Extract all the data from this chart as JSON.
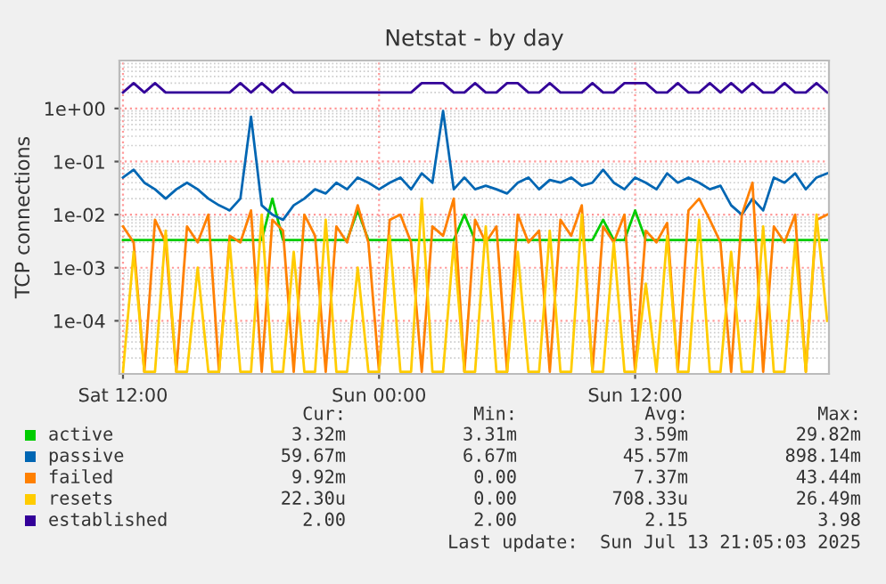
{
  "chart_data": {
    "type": "line",
    "title": "Netstat - by day",
    "ylabel": "TCP connections",
    "x": [
      "2025-07-12T12:00",
      "2025-07-12T12:30",
      "2025-07-12T13:00",
      "2025-07-12T13:30",
      "2025-07-12T14:00",
      "2025-07-12T14:30",
      "2025-07-12T15:00",
      "2025-07-12T15:30",
      "2025-07-12T16:00",
      "2025-07-12T16:30",
      "2025-07-12T17:00",
      "2025-07-12T17:30",
      "2025-07-12T18:00",
      "2025-07-12T18:30",
      "2025-07-12T19:00",
      "2025-07-12T19:30",
      "2025-07-12T20:00",
      "2025-07-12T20:30",
      "2025-07-12T21:00",
      "2025-07-12T21:30",
      "2025-07-12T22:00",
      "2025-07-12T22:30",
      "2025-07-12T23:00",
      "2025-07-12T23:30",
      "2025-07-13T00:00",
      "2025-07-13T00:30",
      "2025-07-13T01:00",
      "2025-07-13T01:30",
      "2025-07-13T02:00",
      "2025-07-13T02:30",
      "2025-07-13T03:00",
      "2025-07-13T03:30",
      "2025-07-13T04:00",
      "2025-07-13T04:30",
      "2025-07-13T05:00",
      "2025-07-13T05:30",
      "2025-07-13T06:00",
      "2025-07-13T06:30",
      "2025-07-13T07:00",
      "2025-07-13T07:30",
      "2025-07-13T08:00",
      "2025-07-13T08:30",
      "2025-07-13T09:00",
      "2025-07-13T09:30",
      "2025-07-13T10:00",
      "2025-07-13T10:30",
      "2025-07-13T11:00",
      "2025-07-13T11:30",
      "2025-07-13T12:00",
      "2025-07-13T12:30",
      "2025-07-13T13:00",
      "2025-07-13T13:30",
      "2025-07-13T14:00",
      "2025-07-13T14:30",
      "2025-07-13T15:00",
      "2025-07-13T15:30",
      "2025-07-13T16:00",
      "2025-07-13T16:30",
      "2025-07-13T17:00",
      "2025-07-13T17:30",
      "2025-07-13T18:00",
      "2025-07-13T18:30",
      "2025-07-13T19:00",
      "2025-07-13T19:30",
      "2025-07-13T20:00",
      "2025-07-13T20:30",
      "2025-07-13T21:00"
    ],
    "xlim": [
      "2025-07-12T11:50",
      "2025-07-13T21:05"
    ],
    "xticks": [
      {
        "value": "2025-07-12T12:00",
        "label": "Sat 12:00"
      },
      {
        "value": "2025-07-13T00:00",
        "label": "Sun 00:00"
      },
      {
        "value": "2025-07-13T12:00",
        "label": "Sun 12:00"
      }
    ],
    "log": "y",
    "ylim": [
      1e-05,
      8
    ],
    "yticks": [
      {
        "value": 0.0001,
        "label": "1e-04"
      },
      {
        "value": 0.001,
        "label": "1e-03"
      },
      {
        "value": 0.01,
        "label": "1e-02"
      },
      {
        "value": 0.1,
        "label": "1e-01"
      },
      {
        "value": 1,
        "label": "1e+00"
      }
    ],
    "grid": true,
    "legend": "bottom",
    "series": [
      {
        "name": "active",
        "color": "#00cc00",
        "values": [
          0.00332,
          0.00332,
          0.00332,
          0.00332,
          0.00332,
          0.00332,
          0.00332,
          0.00332,
          0.00332,
          0.00332,
          0.00332,
          0.00332,
          0.00332,
          0.00332,
          0.02,
          0.00332,
          0.00332,
          0.00332,
          0.00332,
          0.00332,
          0.00332,
          0.00332,
          0.012,
          0.00332,
          0.00332,
          0.00332,
          0.00332,
          0.00332,
          0.00332,
          0.00332,
          0.00332,
          0.00332,
          0.01,
          0.00332,
          0.00332,
          0.00332,
          0.00332,
          0.00332,
          0.00332,
          0.00332,
          0.00332,
          0.00332,
          0.00332,
          0.00332,
          0.00332,
          0.008,
          0.00332,
          0.00332,
          0.012,
          0.00332,
          0.00332,
          0.00332,
          0.00332,
          0.00332,
          0.00332,
          0.00332,
          0.00332,
          0.00332,
          0.00332,
          0.00332,
          0.00332,
          0.00332,
          0.00332,
          0.00332,
          0.00332,
          0.00332,
          0.00332
        ]
      },
      {
        "name": "passive",
        "color": "#0066b3",
        "values": [
          0.05,
          0.07,
          0.04,
          0.03,
          0.02,
          0.03,
          0.04,
          0.03,
          0.02,
          0.015,
          0.012,
          0.02,
          0.7,
          0.015,
          0.01,
          0.008,
          0.015,
          0.02,
          0.03,
          0.025,
          0.04,
          0.03,
          0.05,
          0.04,
          0.03,
          0.04,
          0.05,
          0.03,
          0.06,
          0.04,
          0.9,
          0.03,
          0.05,
          0.03,
          0.035,
          0.03,
          0.025,
          0.04,
          0.05,
          0.03,
          0.045,
          0.04,
          0.05,
          0.035,
          0.04,
          0.07,
          0.04,
          0.03,
          0.05,
          0.04,
          0.03,
          0.06,
          0.04,
          0.05,
          0.04,
          0.03,
          0.035,
          0.015,
          0.01,
          0.02,
          0.012,
          0.05,
          0.04,
          0.06,
          0.03,
          0.05,
          0.06
        ]
      },
      {
        "name": "failed",
        "color": "#ff8000",
        "values": [
          0.006,
          0.003,
          1.1e-05,
          0.008,
          0.003,
          1.1e-05,
          0.006,
          0.003,
          0.01,
          1.1e-05,
          0.004,
          0.003,
          0.012,
          1.1e-05,
          0.008,
          0.005,
          1.1e-05,
          0.01,
          0.004,
          1.1e-05,
          0.006,
          0.003,
          0.015,
          0.003,
          1.1e-05,
          0.008,
          0.01,
          0.003,
          1.1e-05,
          0.006,
          0.004,
          0.02,
          1.1e-05,
          0.008,
          0.003,
          0.006,
          1.1e-05,
          0.01,
          0.003,
          0.005,
          1.1e-05,
          0.008,
          0.004,
          0.015,
          1.1e-05,
          0.006,
          0.003,
          0.01,
          1.1e-05,
          0.005,
          0.003,
          0.007,
          1.1e-05,
          0.012,
          0.02,
          0.008,
          0.003,
          1.1e-05,
          0.01,
          0.04,
          1.1e-05,
          0.006,
          0.003,
          0.01,
          1.1e-05,
          0.008,
          0.01
        ]
      },
      {
        "name": "resets",
        "color": "#ffcc00",
        "values": [
          1.1e-05,
          0.002,
          1.1e-05,
          1.1e-05,
          0.005,
          1.1e-05,
          1.1e-05,
          0.001,
          1.1e-05,
          1.1e-05,
          0.003,
          1.1e-05,
          1.1e-05,
          0.01,
          1.1e-05,
          1.1e-05,
          0.002,
          1.1e-05,
          1.1e-05,
          0.008,
          1.1e-05,
          1.1e-05,
          0.001,
          1.1e-05,
          1.1e-05,
          0.004,
          1.1e-05,
          1.1e-05,
          0.02,
          1.1e-05,
          1.1e-05,
          0.003,
          1.1e-05,
          1.1e-05,
          0.006,
          1.1e-05,
          1.1e-05,
          0.002,
          1.1e-05,
          1.1e-05,
          0.005,
          1.1e-05,
          1.1e-05,
          0.01,
          1.1e-05,
          1.1e-05,
          0.003,
          1.1e-05,
          1.1e-05,
          0.0005,
          1.1e-05,
          0.004,
          1.1e-05,
          1.1e-05,
          0.008,
          1.1e-05,
          1.1e-05,
          0.002,
          1.1e-05,
          1.1e-05,
          0.006,
          1.1e-05,
          1.1e-05,
          0.003,
          1.1e-05,
          0.01,
          0.0001
        ]
      },
      {
        "name": "established",
        "color": "#330099",
        "values": [
          2,
          3,
          2,
          3,
          2,
          2,
          2,
          2,
          2,
          2,
          2,
          3,
          2,
          3,
          2,
          3,
          2,
          2,
          2,
          2,
          2,
          2,
          2,
          2,
          2,
          2,
          2,
          2,
          3,
          3,
          3,
          2,
          2,
          3,
          2,
          2,
          3,
          3,
          2,
          2,
          3,
          2,
          2,
          2,
          3,
          2,
          2,
          3,
          3,
          3,
          2,
          2,
          3,
          2,
          2,
          3,
          2,
          3,
          2,
          3,
          2,
          2,
          3,
          2,
          2,
          3,
          2
        ]
      }
    ],
    "annotations": [
      "Cur:",
      "Min:",
      "Avg:",
      "Max:",
      "3.32m",
      "3.31m",
      "3.59m",
      "29.82m",
      "59.67m",
      "6.67m",
      "45.57m",
      "898.14m",
      "9.92m",
      "0.00",
      "7.37m",
      "43.44m",
      "22.30u",
      "0.00",
      "708.33u",
      "26.49m",
      "2.00",
      "2.00",
      "2.15",
      "3.98",
      "Last update:  Sun Jul 13 21:05:03 2025"
    ]
  }
}
